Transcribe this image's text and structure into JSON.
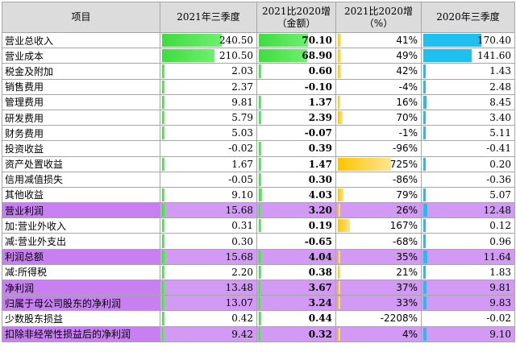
{
  "header": {
    "item": "项目",
    "cur": "2021年三季度",
    "chg_line1": "2021比2020增",
    "chg_line2": "（金额）",
    "pct_line1": "2021比2020增",
    "pct_line2": "（%）",
    "prev": "2020年三季度"
  },
  "colors": {
    "highlight_row": "#c77ff2",
    "green_bar": "#3fdc3f",
    "orange_bar": "#ffc400",
    "blue_bar": "#1fc0f0"
  },
  "rows": [
    {
      "label": "营业总收入",
      "cur": "240.50",
      "chg": "70.10",
      "pct": "41%",
      "prev": "170.40",
      "cur_v": 240.5,
      "chg_v": 70.1,
      "pct_v": 41,
      "prev_v": 170.4,
      "highlight": false
    },
    {
      "label": "营业成本",
      "cur": "210.50",
      "chg": "68.90",
      "pct": "49%",
      "prev": "141.60",
      "cur_v": 210.5,
      "chg_v": 68.9,
      "pct_v": 49,
      "prev_v": 141.6,
      "highlight": false
    },
    {
      "label": "税金及附加",
      "cur": "2.03",
      "chg": "0.60",
      "pct": "42%",
      "prev": "1.43",
      "cur_v": 2.03,
      "chg_v": 0.6,
      "pct_v": 42,
      "prev_v": 1.43,
      "highlight": false
    },
    {
      "label": "销售费用",
      "cur": "2.37",
      "chg": "-0.10",
      "pct": "-4%",
      "prev": "2.48",
      "cur_v": 2.37,
      "chg_v": -0.1,
      "pct_v": -4,
      "prev_v": 2.48,
      "highlight": false
    },
    {
      "label": "管理费用",
      "cur": "9.81",
      "chg": "1.37",
      "pct": "16%",
      "prev": "8.45",
      "cur_v": 9.81,
      "chg_v": 1.37,
      "pct_v": 16,
      "prev_v": 8.45,
      "highlight": false
    },
    {
      "label": "研发费用",
      "cur": "5.79",
      "chg": "2.39",
      "pct": "70%",
      "prev": "3.40",
      "cur_v": 5.79,
      "chg_v": 2.39,
      "pct_v": 70,
      "prev_v": 3.4,
      "highlight": false
    },
    {
      "label": "财务费用",
      "cur": "5.03",
      "chg": "-0.07",
      "pct": "-1%",
      "prev": "5.11",
      "cur_v": 5.03,
      "chg_v": -0.07,
      "pct_v": -1,
      "prev_v": 5.11,
      "highlight": false
    },
    {
      "label": "投资收益",
      "cur": "-0.02",
      "chg": "0.39",
      "pct": "-96%",
      "prev": "-0.41",
      "cur_v": -0.02,
      "chg_v": 0.39,
      "pct_v": -96,
      "prev_v": -0.41,
      "highlight": false
    },
    {
      "label": "资产处置收益",
      "cur": "1.67",
      "chg": "1.47",
      "pct": "725%",
      "prev": "0.20",
      "cur_v": 1.67,
      "chg_v": 1.47,
      "pct_v": 725,
      "prev_v": 0.2,
      "highlight": false
    },
    {
      "label": "信用减值损失",
      "cur": "-0.05",
      "chg": "0.30",
      "pct": "-86%",
      "prev": "-0.36",
      "cur_v": -0.05,
      "chg_v": 0.3,
      "pct_v": -86,
      "prev_v": -0.36,
      "highlight": false
    },
    {
      "label": "其他收益",
      "cur": "9.10",
      "chg": "4.03",
      "pct": "79%",
      "prev": "5.07",
      "cur_v": 9.1,
      "chg_v": 4.03,
      "pct_v": 79,
      "prev_v": 5.07,
      "highlight": false
    },
    {
      "label": "营业利润",
      "cur": "15.68",
      "chg": "3.20",
      "pct": "26%",
      "prev": "12.48",
      "cur_v": 15.68,
      "chg_v": 3.2,
      "pct_v": 26,
      "prev_v": 12.48,
      "highlight": true
    },
    {
      "label": "加:营业外收入",
      "cur": "0.31",
      "chg": "0.19",
      "pct": "167%",
      "prev": "0.12",
      "cur_v": 0.31,
      "chg_v": 0.19,
      "pct_v": 167,
      "prev_v": 0.12,
      "highlight": false
    },
    {
      "label": "减:营业外支出",
      "cur": "0.30",
      "chg": "-0.65",
      "pct": "-68%",
      "prev": "0.96",
      "cur_v": 0.3,
      "chg_v": -0.65,
      "pct_v": -68,
      "prev_v": 0.96,
      "highlight": false
    },
    {
      "label": "利润总额",
      "cur": "15.68",
      "chg": "4.04",
      "pct": "35%",
      "prev": "11.64",
      "cur_v": 15.68,
      "chg_v": 4.04,
      "pct_v": 35,
      "prev_v": 11.64,
      "highlight": true
    },
    {
      "label": "减:所得税",
      "cur": "2.20",
      "chg": "0.38",
      "pct": "21%",
      "prev": "1.83",
      "cur_v": 2.2,
      "chg_v": 0.38,
      "pct_v": 21,
      "prev_v": 1.83,
      "highlight": false
    },
    {
      "label": "净利润",
      "cur": "13.48",
      "chg": "3.67",
      "pct": "37%",
      "prev": "9.81",
      "cur_v": 13.48,
      "chg_v": 3.67,
      "pct_v": 37,
      "prev_v": 9.81,
      "highlight": true
    },
    {
      "label": "归属于母公司股东的净利润",
      "cur": "13.07",
      "chg": "3.24",
      "pct": "33%",
      "prev": "9.83",
      "cur_v": 13.07,
      "chg_v": 3.24,
      "pct_v": 33,
      "prev_v": 9.83,
      "highlight": true
    },
    {
      "label": "少数股东损益",
      "cur": "0.42",
      "chg": "0.44",
      "pct": "-2208%",
      "prev": "-0.02",
      "cur_v": 0.42,
      "chg_v": 0.44,
      "pct_v": -2208,
      "prev_v": -0.02,
      "highlight": false
    },
    {
      "label": "扣除非经常性损益后的净利润",
      "cur": "9.42",
      "chg": "0.32",
      "pct": "4%",
      "prev": "9.10",
      "cur_v": 9.42,
      "chg_v": 0.32,
      "pct_v": 4,
      "prev_v": 9.1,
      "highlight": true
    }
  ]
}
